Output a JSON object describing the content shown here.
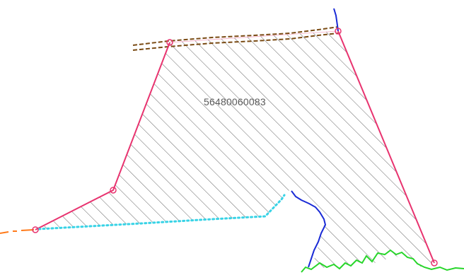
{
  "map": {
    "parcel_id": "56480060083"
  },
  "style": {
    "background": "#ffffff",
    "hatch_color": "#555555",
    "parcel_edge_color": "#e8336f",
    "road_color": "#7a4b14",
    "stream_color": "#1a2bd6",
    "vegetation_edge_color": "#27d62a",
    "dotted_edge_color": "#39d3e6",
    "dashdot_edge_color": "#ff7a1a",
    "vertex_color": "#e8336f"
  }
}
